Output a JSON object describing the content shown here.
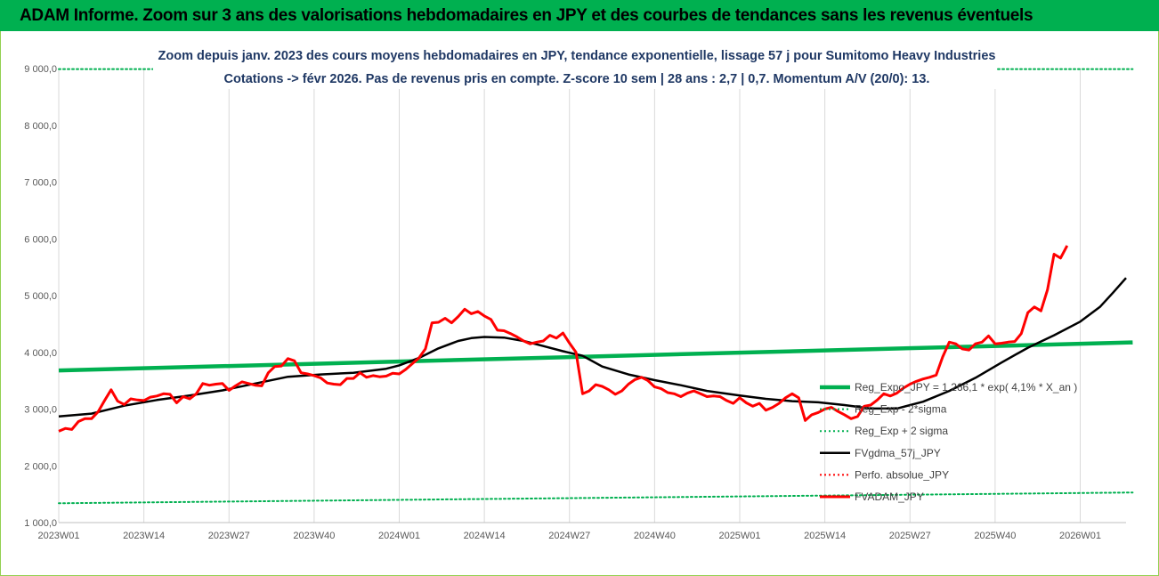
{
  "banner": {
    "title": "ADAM Informe. Zoom sur 3 ans des valorisations hebdomadaires en JPY et des courbes de tendances sans les revenus éventuels",
    "color": "#00b050"
  },
  "chart_data": {
    "type": "line",
    "title_line1": "Zoom depuis janv. 2023 des cours moyens hebdomadaires en JPY, tendance exponentielle, lissage 57 j pour Sumitomo Heavy Industries",
    "title_line2": "Cotations -> févr 2026. Pas de revenus pris en compte. Z-score 10 sem | 28 ans : 2,7 | 0,7. Momentum A/V (20/0): 13.",
    "xlabel": "",
    "ylabel": "",
    "ylim": [
      1000,
      9000
    ],
    "yticks": [
      "1 000,0",
      "2 000,0",
      "3 000,0",
      "4 000,0",
      "5 000,0",
      "6 000,0",
      "7 000,0",
      "8 000,0",
      "9 000,0"
    ],
    "ytick_values": [
      1000,
      2000,
      3000,
      4000,
      5000,
      6000,
      7000,
      8000,
      9000
    ],
    "n_weeks": 164,
    "xticks": [
      {
        "label": "2023W01",
        "week": 0
      },
      {
        "label": "2023W14",
        "week": 13
      },
      {
        "label": "2023W27",
        "week": 26
      },
      {
        "label": "2023W40",
        "week": 39
      },
      {
        "label": "2024W01",
        "week": 52
      },
      {
        "label": "2024W14",
        "week": 65
      },
      {
        "label": "2024W27",
        "week": 78
      },
      {
        "label": "2024W40",
        "week": 91
      },
      {
        "label": "2025W01",
        "week": 104
      },
      {
        "label": "2025W14",
        "week": 117
      },
      {
        "label": "2025W27",
        "week": 130
      },
      {
        "label": "2025W40",
        "week": 143
      },
      {
        "label": "2026W01",
        "week": 156
      }
    ],
    "grid": "vertical",
    "legend_position": "right",
    "series": [
      {
        "name": "Reg_Expo_JPY = 1 266,1 * exp( 4,1% * X_an )",
        "color": "#00b050",
        "style": "solid-thick",
        "points": [
          [
            0,
            3680
          ],
          [
            164,
            4175
          ]
        ]
      },
      {
        "name": "Reg_Exp - 2*sigma",
        "color": "#00b050",
        "style": "dotted",
        "points": [
          [
            0,
            1340
          ],
          [
            164,
            1530
          ]
        ]
      },
      {
        "name": "Reg_Exp + 2 sigma",
        "color": "#00b050",
        "style": "dotted",
        "points": [
          [
            0,
            8990
          ],
          [
            164,
            8990
          ]
        ]
      },
      {
        "name": "FVgdma_57j_JPY",
        "color": "#000000",
        "style": "solid",
        "points": [
          [
            0,
            2870
          ],
          [
            5,
            2920
          ],
          [
            10,
            3060
          ],
          [
            15,
            3160
          ],
          [
            20,
            3240
          ],
          [
            25,
            3330
          ],
          [
            30,
            3450
          ],
          [
            35,
            3570
          ],
          [
            40,
            3610
          ],
          [
            45,
            3640
          ],
          [
            50,
            3710
          ],
          [
            52,
            3770
          ],
          [
            55,
            3900
          ],
          [
            58,
            4070
          ],
          [
            61,
            4200
          ],
          [
            63,
            4250
          ],
          [
            65,
            4270
          ],
          [
            68,
            4260
          ],
          [
            71,
            4200
          ],
          [
            74,
            4110
          ],
          [
            77,
            4020
          ],
          [
            80,
            3940
          ],
          [
            83,
            3750
          ],
          [
            87,
            3610
          ],
          [
            91,
            3510
          ],
          [
            95,
            3420
          ],
          [
            99,
            3320
          ],
          [
            104,
            3240
          ],
          [
            108,
            3180
          ],
          [
            112,
            3140
          ],
          [
            116,
            3120
          ],
          [
            120,
            3070
          ],
          [
            124,
            3010
          ],
          [
            128,
            3010
          ],
          [
            132,
            3130
          ],
          [
            136,
            3320
          ],
          [
            140,
            3550
          ],
          [
            144,
            3820
          ],
          [
            148,
            4080
          ],
          [
            152,
            4300
          ],
          [
            156,
            4540
          ],
          [
            159,
            4800
          ],
          [
            161,
            5050
          ],
          [
            163,
            5310
          ]
        ]
      },
      {
        "name": "Perfo. absolue_JPY",
        "color": "#ff0000",
        "style": "dotted",
        "points": []
      },
      {
        "name": "FVADAM_JPY",
        "color": "#ff0000",
        "style": "solid-thick",
        "points": [
          [
            0,
            2610
          ],
          [
            1,
            2660
          ],
          [
            2,
            2640
          ],
          [
            3,
            2780
          ],
          [
            4,
            2830
          ],
          [
            5,
            2830
          ],
          [
            6,
            2950
          ],
          [
            7,
            3150
          ],
          [
            8,
            3340
          ],
          [
            9,
            3140
          ],
          [
            10,
            3080
          ],
          [
            11,
            3180
          ],
          [
            12,
            3160
          ],
          [
            13,
            3150
          ],
          [
            14,
            3210
          ],
          [
            15,
            3230
          ],
          [
            16,
            3270
          ],
          [
            17,
            3260
          ],
          [
            18,
            3110
          ],
          [
            19,
            3220
          ],
          [
            20,
            3180
          ],
          [
            21,
            3270
          ],
          [
            22,
            3450
          ],
          [
            23,
            3420
          ],
          [
            24,
            3440
          ],
          [
            25,
            3450
          ],
          [
            26,
            3330
          ],
          [
            27,
            3410
          ],
          [
            28,
            3480
          ],
          [
            29,
            3450
          ],
          [
            30,
            3420
          ],
          [
            31,
            3410
          ],
          [
            32,
            3640
          ],
          [
            33,
            3750
          ],
          [
            34,
            3760
          ],
          [
            35,
            3890
          ],
          [
            36,
            3850
          ],
          [
            37,
            3640
          ],
          [
            38,
            3620
          ],
          [
            39,
            3590
          ],
          [
            40,
            3550
          ],
          [
            41,
            3460
          ],
          [
            42,
            3440
          ],
          [
            43,
            3430
          ],
          [
            44,
            3540
          ],
          [
            45,
            3540
          ],
          [
            46,
            3640
          ],
          [
            47,
            3560
          ],
          [
            48,
            3590
          ],
          [
            49,
            3570
          ],
          [
            50,
            3580
          ],
          [
            51,
            3630
          ],
          [
            52,
            3620
          ],
          [
            53,
            3700
          ],
          [
            54,
            3800
          ],
          [
            55,
            3900
          ],
          [
            56,
            4060
          ],
          [
            57,
            4520
          ],
          [
            58,
            4530
          ],
          [
            59,
            4600
          ],
          [
            60,
            4520
          ],
          [
            61,
            4630
          ],
          [
            62,
            4760
          ],
          [
            63,
            4680
          ],
          [
            64,
            4720
          ],
          [
            65,
            4640
          ],
          [
            66,
            4580
          ],
          [
            67,
            4390
          ],
          [
            68,
            4380
          ],
          [
            69,
            4330
          ],
          [
            70,
            4270
          ],
          [
            71,
            4200
          ],
          [
            72,
            4150
          ],
          [
            73,
            4180
          ],
          [
            74,
            4200
          ],
          [
            75,
            4300
          ],
          [
            76,
            4250
          ],
          [
            77,
            4340
          ],
          [
            78,
            4160
          ],
          [
            79,
            4000
          ],
          [
            80,
            3270
          ],
          [
            81,
            3320
          ],
          [
            82,
            3430
          ],
          [
            83,
            3400
          ],
          [
            84,
            3340
          ],
          [
            85,
            3260
          ],
          [
            86,
            3320
          ],
          [
            87,
            3440
          ],
          [
            88,
            3520
          ],
          [
            89,
            3560
          ],
          [
            90,
            3500
          ],
          [
            91,
            3390
          ],
          [
            92,
            3360
          ],
          [
            93,
            3290
          ],
          [
            94,
            3270
          ],
          [
            95,
            3220
          ],
          [
            96,
            3280
          ],
          [
            97,
            3320
          ],
          [
            98,
            3270
          ],
          [
            99,
            3220
          ],
          [
            100,
            3230
          ],
          [
            101,
            3220
          ],
          [
            102,
            3150
          ],
          [
            103,
            3100
          ],
          [
            104,
            3200
          ],
          [
            105,
            3110
          ],
          [
            106,
            3050
          ],
          [
            107,
            3100
          ],
          [
            108,
            2980
          ],
          [
            109,
            3030
          ],
          [
            110,
            3100
          ],
          [
            111,
            3200
          ],
          [
            112,
            3270
          ],
          [
            113,
            3200
          ],
          [
            114,
            2800
          ],
          [
            115,
            2900
          ],
          [
            116,
            2940
          ],
          [
            117,
            3000
          ],
          [
            118,
            3030
          ],
          [
            119,
            2960
          ],
          [
            120,
            2900
          ],
          [
            121,
            2830
          ],
          [
            122,
            2870
          ],
          [
            123,
            3050
          ],
          [
            124,
            3070
          ],
          [
            125,
            3160
          ],
          [
            126,
            3270
          ],
          [
            127,
            3230
          ],
          [
            128,
            3280
          ],
          [
            129,
            3370
          ],
          [
            130,
            3440
          ],
          [
            131,
            3490
          ],
          [
            132,
            3530
          ],
          [
            133,
            3560
          ],
          [
            134,
            3600
          ],
          [
            135,
            3920
          ],
          [
            136,
            4180
          ],
          [
            137,
            4150
          ],
          [
            138,
            4060
          ],
          [
            139,
            4040
          ],
          [
            140,
            4150
          ],
          [
            141,
            4180
          ],
          [
            142,
            4290
          ],
          [
            143,
            4150
          ],
          [
            144,
            4160
          ],
          [
            145,
            4180
          ],
          [
            146,
            4190
          ],
          [
            147,
            4330
          ],
          [
            148,
            4700
          ],
          [
            149,
            4800
          ],
          [
            150,
            4730
          ],
          [
            151,
            5100
          ],
          [
            152,
            5730
          ],
          [
            153,
            5660
          ],
          [
            154,
            5880
          ]
        ]
      }
    ]
  }
}
